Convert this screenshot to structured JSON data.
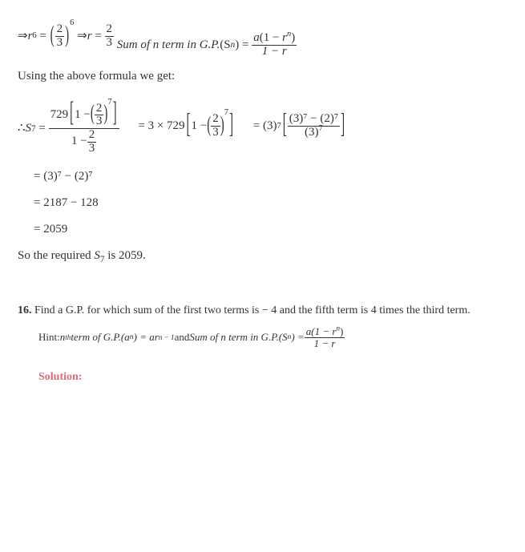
{
  "eq1": {
    "lhs_base": "r",
    "lhs_exp": "6",
    "frac_num": "2",
    "frac_den": "3",
    "rhs_exp": "6"
  },
  "eq2": {
    "lhs_base": "r",
    "frac_num": "2",
    "frac_den": "3"
  },
  "sum_formula": {
    "label": "Sum of n term in G.P.",
    "lhs": "(S",
    "lhs_sub": "n",
    "lhs_close": ")",
    "num1_a": "a",
    "num1_open": "(1 − ",
    "num1_r": "r",
    "num1_exp": "n",
    "num1_close": ")",
    "den": "1 − r"
  },
  "text1": "Using the above formula we get:",
  "s7": {
    "therefore": "∴ ",
    "S": "S",
    "sub7": "7",
    "coeff": "729",
    "one_minus": "1 − ",
    "inner_num": "2",
    "inner_den": "3",
    "inner_exp": "7",
    "den_one": "1 − ",
    "den_inner_num": "2",
    "den_inner_den": "3"
  },
  "step2": {
    "prefix": "= 3 × 729",
    "one_minus": "1 − ",
    "inner_num": "2",
    "inner_den": "3",
    "inner_exp": "7"
  },
  "step3": {
    "prefix_open": "= (3)",
    "prefix_exp": "7",
    "num": "(3)⁷ − (2)⁷",
    "den_open": "(3)",
    "den_exp": "7"
  },
  "step4": "= (3)⁷ − (2)⁷",
  "step5": "= 2187 − 128",
  "step6": "= 2059",
  "text2_a": "So the required ",
  "text2_s": "S",
  "text2_sub": "7",
  "text2_b": " is ",
  "text2_val": "2059",
  "text2_c": ".",
  "q16": {
    "num": "16.",
    "a": " Find a G.P. for which sum of the first two terms is ",
    "neg4": "− 4",
    "b": " and the fifth term is ",
    "four": "4",
    "c": " times the third term."
  },
  "hint": {
    "label": "Hint: ",
    "nth_a": "n",
    "nth_exp": "th",
    "nth_b": "term of G.P.(a",
    "nth_sub": "n",
    "nth_c": ") = ar",
    "nth_exp2": "n − 1",
    "and": " and ",
    "sum_label": "Sum of n term in G.P.(S",
    "sum_sub": "n",
    "sum_close": ") = ",
    "num1_a": "a",
    "num1_mid": "(1 − r",
    "num1_exp": "n",
    "num1_close": ")",
    "den": "1 − r"
  },
  "solution_label": "Solution:"
}
